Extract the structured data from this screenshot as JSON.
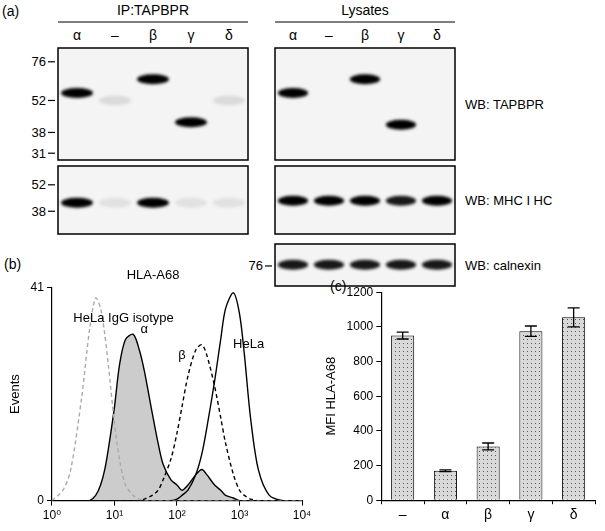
{
  "panel_a": {
    "label": "(a)",
    "lanes": [
      "α",
      "–",
      "β",
      "γ",
      "δ"
    ],
    "groups": [
      "IP:TAPBPR",
      "Lysates"
    ],
    "rows": [
      {
        "probe": "WB: TAPBPR",
        "ylim": [
          29,
          87
        ],
        "markers": [
          76,
          52,
          38,
          31
        ],
        "marker_group": 0,
        "bands": [
          [
            {
              "kDa": 56,
              "intensity": 1
            },
            {
              "kDa": 52,
              "intensity": 0.1
            },
            {
              "kDa": 64,
              "intensity": 1
            },
            {
              "kDa": 42,
              "intensity": 1
            },
            {
              "kDa": 52,
              "intensity": 0.1
            }
          ],
          [
            {
              "kDa": 56,
              "intensity": 1
            },
            null,
            {
              "kDa": 64,
              "intensity": 1
            },
            {
              "kDa": 41,
              "intensity": 1
            },
            null
          ]
        ]
      },
      {
        "probe": "WB: MHC I HC",
        "ylim": [
          29,
          65
        ],
        "markers": [
          52,
          38
        ],
        "marker_group": 0,
        "bands": [
          [
            {
              "kDa": 42,
              "intensity": 1
            },
            {
              "kDa": 42,
              "intensity": 0.08
            },
            {
              "kDa": 42,
              "intensity": 1
            },
            {
              "kDa": 42,
              "intensity": 0.08
            },
            {
              "kDa": 42,
              "intensity": 0.08
            }
          ],
          [
            {
              "kDa": 43,
              "intensity": 1
            },
            {
              "kDa": 43,
              "intensity": 1
            },
            {
              "kDa": 43,
              "intensity": 1
            },
            {
              "kDa": 43,
              "intensity": 0.9
            },
            {
              "kDa": 43,
              "intensity": 1
            }
          ]
        ]
      },
      {
        "probe": "WB: calnexin",
        "ylim": [
          62,
          95
        ],
        "markers": [
          76
        ],
        "marker_group": 1,
        "bands": [
          null,
          [
            {
              "kDa": 77,
              "intensity": 0.9
            },
            {
              "kDa": 77,
              "intensity": 0.9
            },
            {
              "kDa": 77,
              "intensity": 0.9
            },
            {
              "kDa": 77,
              "intensity": 0.9
            },
            {
              "kDa": 77,
              "intensity": 0.9
            }
          ]
        ]
      }
    ]
  },
  "chart_data": [
    {
      "panel": "(b)",
      "type": "line",
      "title": "HLA-A68",
      "ylabel": "Events",
      "log": "x",
      "grid": false,
      "x": [
        1,
        1.5,
        2,
        3,
        4,
        5,
        6,
        7,
        8,
        10,
        12,
        15,
        20,
        25,
        30,
        40,
        50,
        60,
        80,
        100,
        120,
        150,
        200,
        250,
        300,
        400,
        500,
        600,
        800,
        1000,
        1200,
        1500,
        2000,
        3000,
        5000,
        10000
      ],
      "xlim": [
        1,
        10000
      ],
      "xticks": [
        {
          "value": 1,
          "label": "10⁰"
        },
        {
          "value": 10,
          "label": "10¹"
        },
        {
          "value": 100,
          "label": "10²"
        },
        {
          "value": 1000,
          "label": "10³"
        },
        {
          "value": 10000,
          "label": "10⁴"
        }
      ],
      "ylim": [
        0,
        41
      ],
      "yticks": [
        0,
        41
      ],
      "series": [
        {
          "name": "HeLa IgG isotype",
          "color": "#aaaaaa",
          "line_style": "dashed",
          "label_at": [
            14,
            35
          ],
          "values": [
            0,
            2,
            6,
            20,
            33,
            39,
            37,
            32,
            26,
            15,
            8,
            3,
            1,
            0.3,
            0,
            0,
            0,
            0,
            0,
            0,
            0,
            0,
            0,
            0,
            0,
            0,
            0,
            0,
            0,
            0,
            0,
            0,
            0,
            0,
            0,
            0
          ]
        },
        {
          "name": "α",
          "type": "area",
          "color": "#cccccc",
          "line_style": "solid",
          "label_at": [
            30,
            33
          ],
          "values": [
            0,
            0,
            0,
            0,
            0,
            1,
            3,
            6,
            10,
            18,
            26,
            31,
            32,
            29,
            25,
            17,
            11,
            7,
            4,
            3,
            2,
            3,
            5,
            6,
            5,
            3,
            2,
            1,
            0.5,
            0,
            0,
            0,
            0,
            0,
            0,
            0
          ]
        },
        {
          "name": "β",
          "color": "#000000",
          "line_style": "dashed",
          "label_at": [
            120,
            28
          ],
          "values": [
            0,
            0,
            0,
            0,
            0,
            0,
            0,
            0,
            0,
            0,
            0,
            0,
            0,
            0,
            0.3,
            1,
            2,
            4,
            8,
            13,
            18,
            24,
            29,
            30,
            28,
            22,
            16,
            11,
            5,
            2,
            1,
            0.3,
            0,
            0,
            0,
            0
          ]
        },
        {
          "name": "HeLa",
          "color": "#000000",
          "line_style": "solid",
          "label_at": [
            1400,
            30
          ],
          "values": [
            0,
            0,
            0,
            0,
            0,
            0,
            0,
            0,
            0,
            0,
            0,
            0,
            0,
            0,
            0,
            0,
            0,
            0,
            0,
            0.3,
            1,
            2,
            5,
            9,
            14,
            23,
            31,
            37,
            40,
            36,
            28,
            16,
            6,
            1,
            0,
            0
          ]
        }
      ]
    },
    {
      "panel": "(c)",
      "type": "bar",
      "ylabel": "MFI HLA-A68",
      "grid": false,
      "categories": [
        "–",
        "α",
        "β",
        "γ",
        "δ"
      ],
      "values": [
        950,
        170,
        310,
        975,
        1055
      ],
      "errors": [
        20,
        5,
        20,
        30,
        55
      ],
      "color": "#d9d9d9",
      "ylim": [
        0,
        1200
      ],
      "yticks": [
        0,
        200,
        400,
        600,
        800,
        1000,
        1200
      ]
    }
  ]
}
